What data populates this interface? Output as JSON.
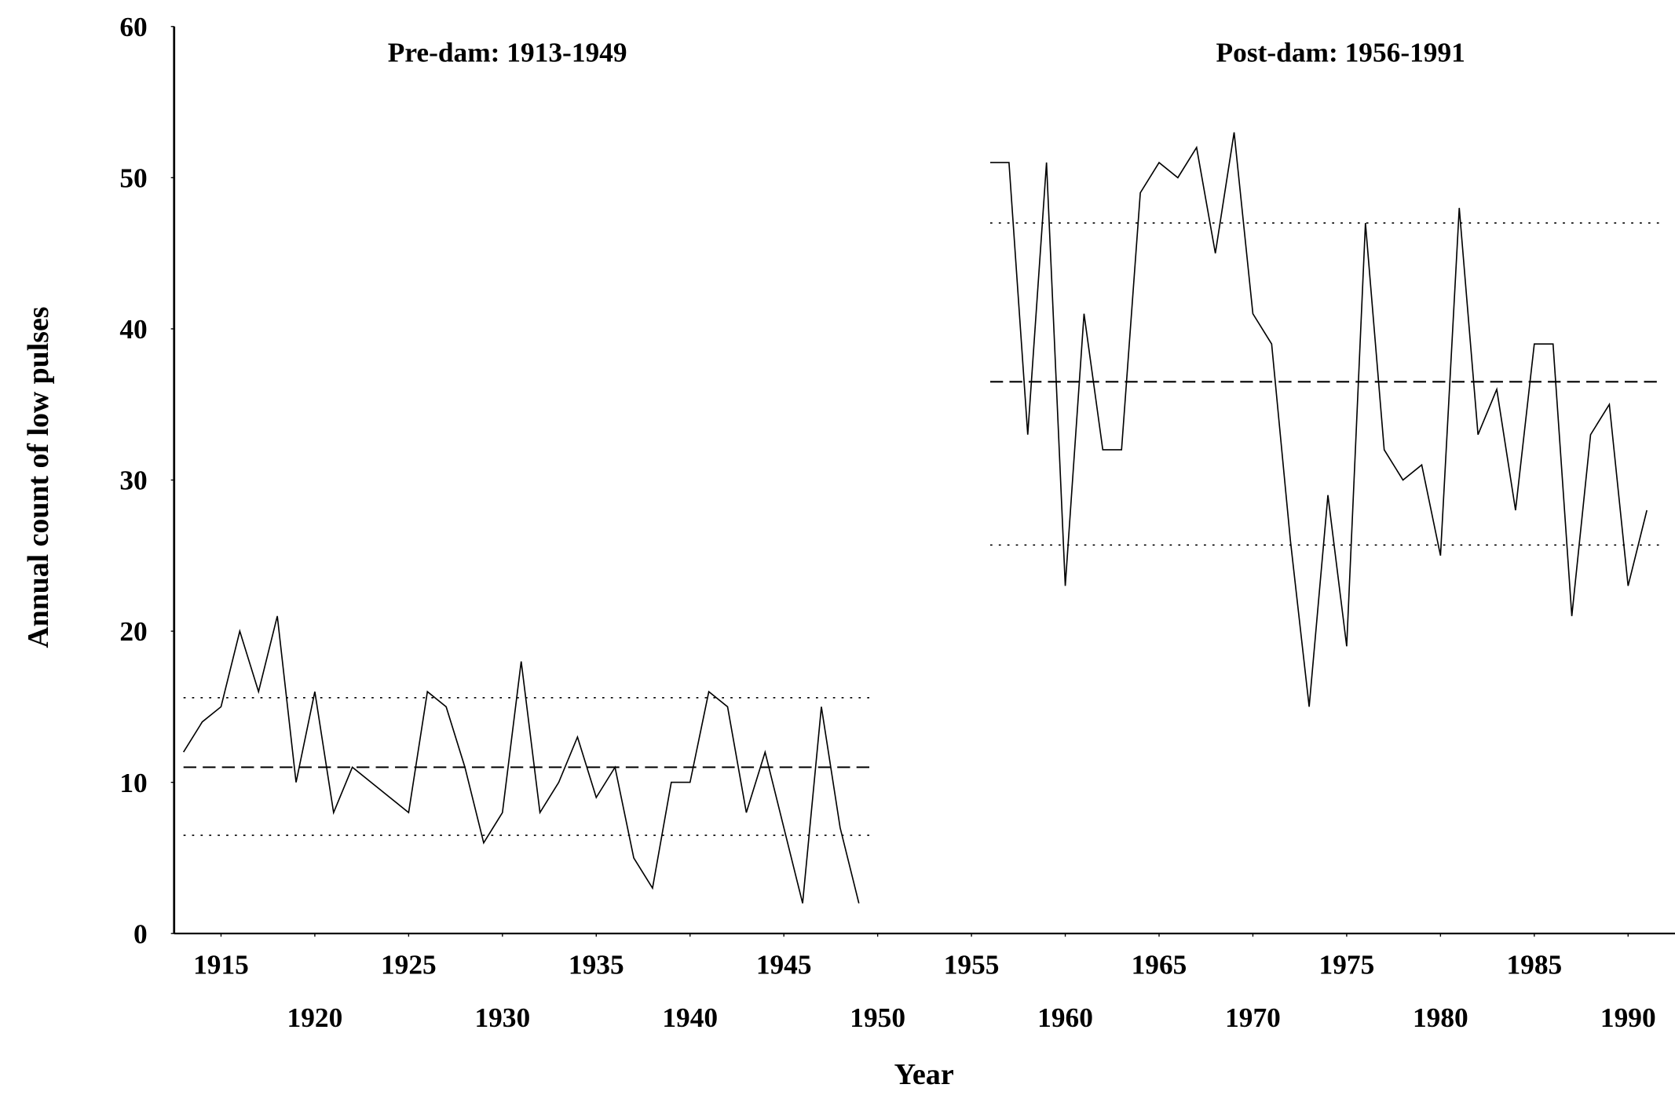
{
  "chart_data": {
    "type": "line",
    "xlabel": "Year",
    "ylabel": "Annual count of low pulses",
    "xlim": [
      1912.5,
      1992.5
    ],
    "ylim": [
      0,
      60
    ],
    "xticks": [
      1915,
      1920,
      1925,
      1930,
      1935,
      1940,
      1945,
      1950,
      1955,
      1960,
      1965,
      1970,
      1975,
      1980,
      1985,
      1990
    ],
    "yticks": [
      0,
      10,
      20,
      30,
      40,
      50,
      60
    ],
    "series": [
      {
        "name": "Pre-dam: 1913-1949",
        "color": "#000000",
        "x": [
          1913,
          1914,
          1915,
          1916,
          1917,
          1918,
          1919,
          1920,
          1921,
          1922,
          1923,
          1924,
          1925,
          1926,
          1927,
          1928,
          1929,
          1930,
          1931,
          1932,
          1933,
          1934,
          1935,
          1936,
          1937,
          1938,
          1939,
          1940,
          1941,
          1942,
          1943,
          1944,
          1945,
          1946,
          1947,
          1948,
          1949
        ],
        "values": [
          12,
          14,
          15,
          20,
          16,
          21,
          10,
          16,
          8,
          11,
          10,
          9,
          8,
          16,
          15,
          11,
          6,
          8,
          18,
          8,
          10,
          13,
          9,
          11,
          5,
          3,
          10,
          10,
          16,
          15,
          8,
          12,
          7,
          2,
          15,
          7,
          2
        ]
      },
      {
        "name": "Post-dam: 1956-1991",
        "color": "#000000",
        "x": [
          1956,
          1957,
          1958,
          1959,
          1960,
          1961,
          1962,
          1963,
          1964,
          1965,
          1966,
          1967,
          1968,
          1969,
          1970,
          1971,
          1972,
          1973,
          1974,
          1975,
          1976,
          1977,
          1978,
          1979,
          1980,
          1981,
          1982,
          1983,
          1984,
          1985,
          1986,
          1987,
          1988,
          1989,
          1990,
          1991
        ],
        "values": [
          51,
          51,
          33,
          51,
          23,
          41,
          32,
          32,
          49,
          51,
          50,
          52,
          45,
          53,
          41,
          39,
          26,
          15,
          29,
          19,
          47,
          32,
          30,
          31,
          25,
          48,
          33,
          36,
          28,
          39,
          39,
          21,
          33,
          35,
          23,
          28
        ]
      }
    ],
    "reference_lines": [
      {
        "value": 11,
        "style": "dashed",
        "x": [
          1913,
          1949
        ]
      },
      {
        "value": 15.6,
        "style": "dotted",
        "x": [
          1913,
          1949
        ]
      },
      {
        "value": 6.5,
        "style": "dotted",
        "x": [
          1913,
          1949
        ]
      },
      {
        "value": 36.5,
        "style": "dashed",
        "x": [
          1956,
          1991
        ]
      },
      {
        "value": 47,
        "style": "dotted",
        "x": [
          1956,
          1991
        ]
      },
      {
        "value": 25.7,
        "style": "dotted",
        "x": [
          1956,
          1991
        ]
      }
    ]
  }
}
